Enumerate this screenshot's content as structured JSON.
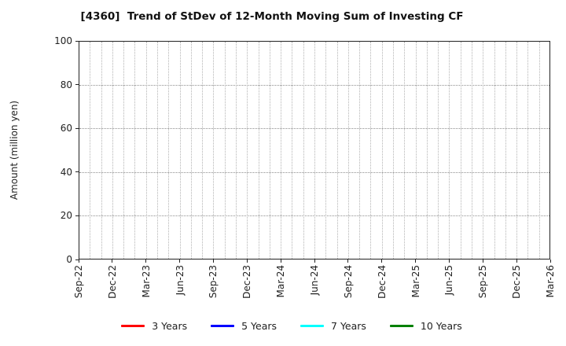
{
  "title": "[4360]  Trend of StDev of 12-Month Moving Sum of Investing CF",
  "chart_data": {
    "type": "line",
    "title": "[4360]  Trend of StDev of 12-Month Moving Sum of Investing CF",
    "xlabel": "",
    "ylabel": "Amount (million yen)",
    "ylim": [
      0,
      100
    ],
    "yticks": [
      0,
      20,
      40,
      60,
      80,
      100
    ],
    "x_tick_labels": [
      "Sep-22",
      "Dec-22",
      "Mar-23",
      "Jun-23",
      "Sep-23",
      "Dec-23",
      "Mar-24",
      "Jun-24",
      "Sep-24",
      "Dec-24",
      "Mar-25",
      "Jun-25",
      "Sep-25",
      "Dec-25",
      "Mar-26"
    ],
    "months_per_major_tick": 3,
    "total_months": 42,
    "grid": {
      "vertical": "dotted, one per month",
      "horizontal": "dotted, at major y ticks",
      "vertical_color": "#b4b4b4",
      "horizontal_color": "#8f8f8f"
    },
    "legend_position": "bottom-center",
    "series": [
      {
        "name": "3 Years",
        "color": "#ff0000",
        "values": []
      },
      {
        "name": "5 Years",
        "color": "#0000ff",
        "values": []
      },
      {
        "name": "7 Years",
        "color": "#00ffff",
        "values": []
      },
      {
        "name": "10 Years",
        "color": "#008000",
        "values": []
      }
    ]
  }
}
